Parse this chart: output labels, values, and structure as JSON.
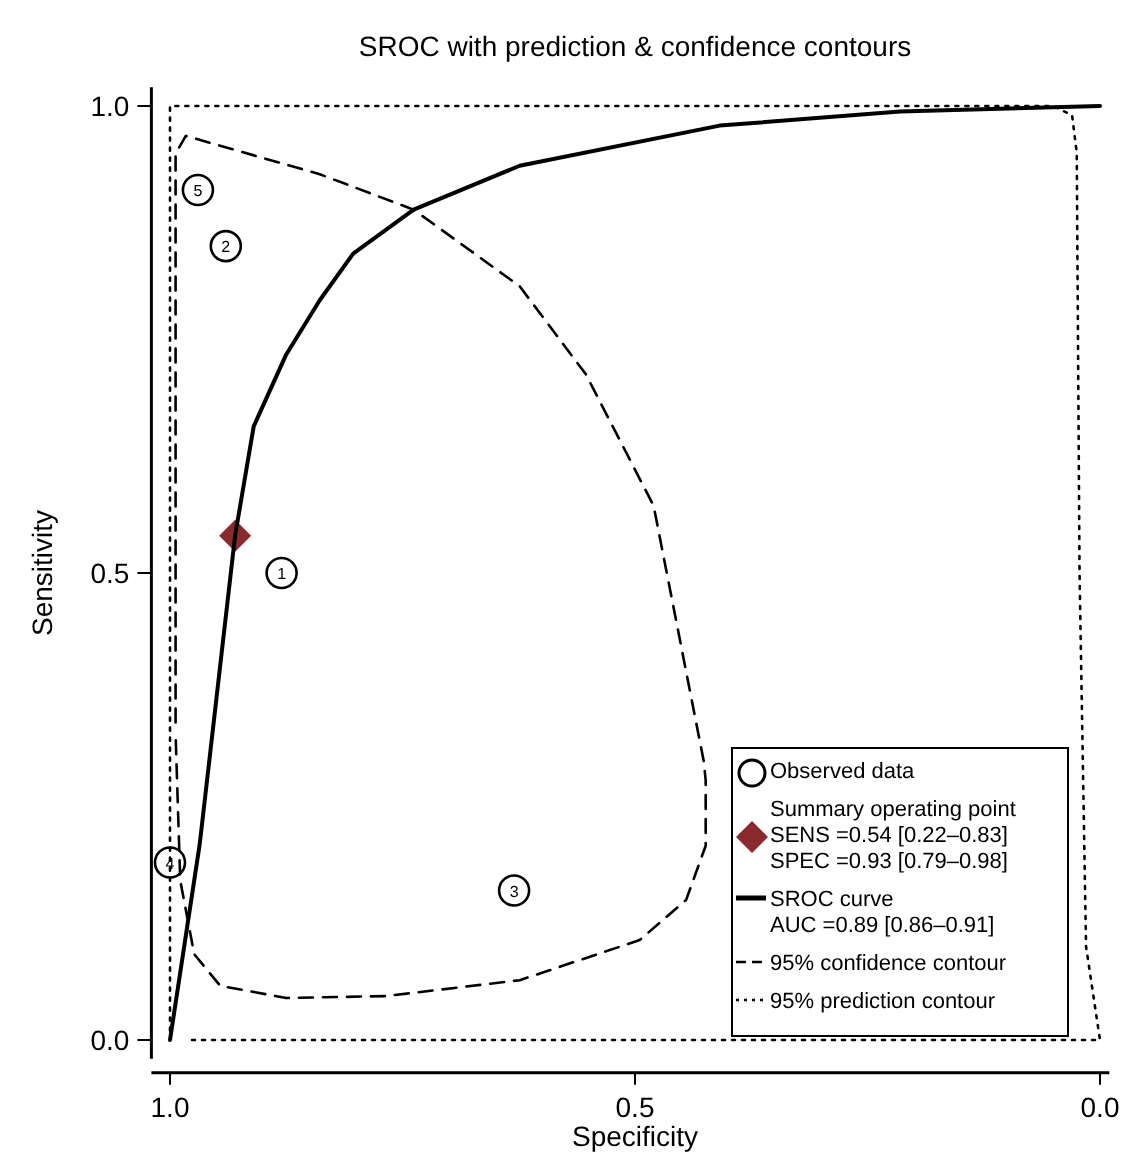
{
  "chart_data": {
    "type": "scatter",
    "title": "SROC with prediction & confidence contours",
    "xlabel": "Specificity",
    "ylabel": "Sensitivity",
    "xlim": [
      1.02,
      -0.01
    ],
    "ylim": [
      -0.02,
      1.02
    ],
    "xticks": [
      {
        "value": 1,
        "label": "1.0"
      },
      0.5,
      {
        "value": 0,
        "label": "0.0"
      }
    ],
    "yticks": [
      {
        "value": 0,
        "label": "0.0"
      },
      0.5,
      {
        "value": 1,
        "label": "1.0"
      }
    ],
    "legend": "bottom right",
    "annotations": [
      {
        "text": "1",
        "x": 0.88,
        "y": 0.5
      },
      {
        "text": "2",
        "x": 0.94,
        "y": 0.85
      },
      {
        "text": "3",
        "x": 0.63,
        "y": 0.16
      },
      {
        "text": "4",
        "x": 1.0,
        "y": 0.19
      },
      {
        "text": "5",
        "x": 0.97,
        "y": 0.91
      }
    ],
    "series": [
      {
        "name": "Observed data",
        "marker": "circle",
        "color": "#000000",
        "x": [
          0.88,
          0.94,
          0.63,
          1.0,
          0.97
        ],
        "values": [
          0.5,
          0.85,
          0.16,
          0.19,
          0.91
        ]
      },
      {
        "name": "Summary operating point\nSENS =0.54 [0.22–0.83]\nSPEC =0.93 [0.79–0.98]",
        "marker": "diamond",
        "color": "#8b2a2e",
        "x": [
          0.93
        ],
        "values": [
          0.54
        ]
      },
      {
        "name": "SROC curve\nAUC =0.89 [0.86–0.91]",
        "type": "line",
        "line_style": "solid",
        "color": "#000000",
        "x": [
          1.0,
          0.968,
          0.93,
          0.91,
          0.875,
          0.839,
          0.803,
          0.738,
          0.624,
          0.409,
          0.215,
          0.0
        ],
        "values": [
          0.0,
          0.21,
          0.54,
          0.657,
          0.734,
          0.792,
          0.842,
          0.889,
          0.936,
          0.979,
          0.994,
          1.0
        ]
      },
      {
        "name": "95% confidence contour",
        "type": "line",
        "line_style": "dashed",
        "color": "#000000",
        "x": [
          0.994,
          0.994,
          0.983,
          0.839,
          0.738,
          0.624,
          0.553,
          0.48,
          0.426,
          0.424,
          0.424,
          0.445,
          0.495,
          0.624,
          0.768,
          0.875,
          0.946,
          0.974,
          0.989,
          0.994
        ],
        "values": [
          0.34,
          0.949,
          0.968,
          0.927,
          0.889,
          0.807,
          0.713,
          0.572,
          0.298,
          0.278,
          0.208,
          0.15,
          0.107,
          0.064,
          0.047,
          0.045,
          0.058,
          0.092,
          0.171,
          0.328
        ]
      },
      {
        "name": "95% prediction contour",
        "type": "line",
        "line_style": "dotted",
        "color": "#000000",
        "x": [
          1.0,
          1.0,
          0.05,
          0.03,
          0.025,
          0.022,
          0.015,
          0.0,
          0.98
        ],
        "values": [
          0.01,
          1.0,
          1.0,
          0.99,
          0.95,
          0.5,
          0.1,
          0.0,
          0.0
        ]
      }
    ]
  }
}
